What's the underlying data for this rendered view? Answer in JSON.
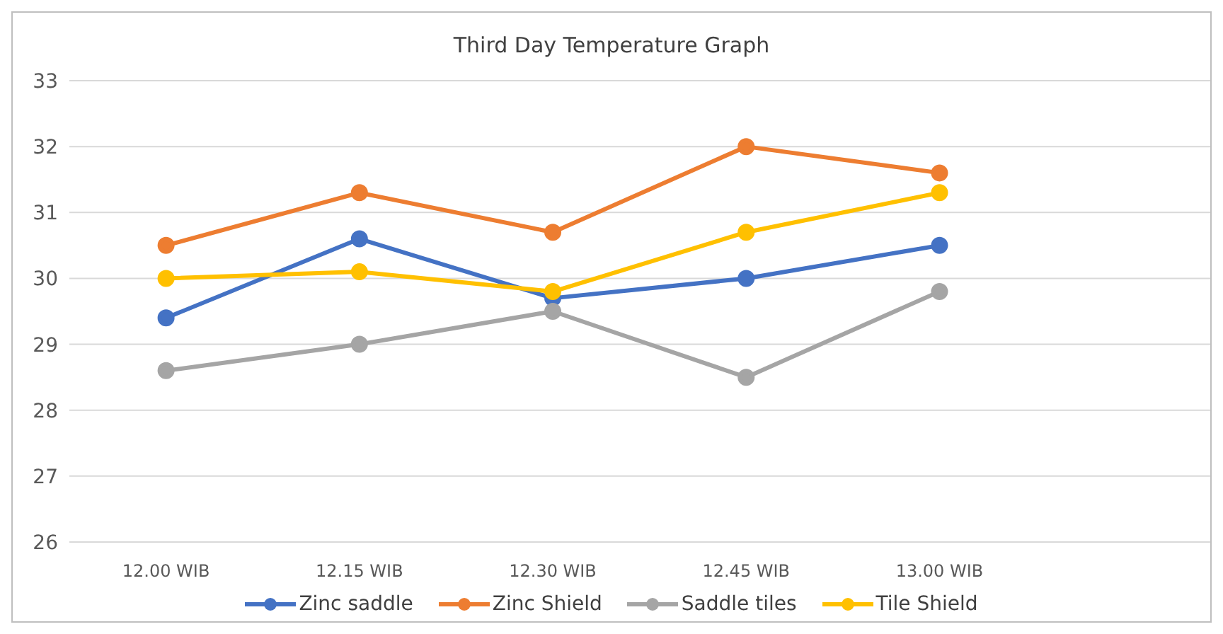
{
  "chart_data": {
    "type": "line",
    "title": "Third Day Temperature Graph",
    "categories": [
      "12.00 WIB",
      "12.15 WIB",
      "12.30 WIB",
      "12.45 WIB",
      "13.00 WIB"
    ],
    "series": [
      {
        "name": "Zinc saddle",
        "color": "#4472c4",
        "values": [
          29.4,
          30.6,
          29.7,
          30.0,
          30.5
        ]
      },
      {
        "name": "Zinc Shield",
        "color": "#ed7d31",
        "values": [
          30.5,
          31.3,
          30.7,
          32.0,
          31.6
        ]
      },
      {
        "name": "Saddle tiles",
        "color": "#a5a5a5",
        "values": [
          28.6,
          29.0,
          29.5,
          28.5,
          29.8
        ]
      },
      {
        "name": "Tile Shield",
        "color": "#ffc000",
        "values": [
          30.0,
          30.1,
          29.8,
          30.7,
          31.3
        ]
      }
    ],
    "ylim": [
      26,
      33
    ],
    "yticks": [
      26,
      27,
      28,
      29,
      30,
      31,
      32,
      33
    ],
    "grid": "y",
    "legend": "bottom",
    "marker": "circle",
    "line_style": "solid"
  }
}
